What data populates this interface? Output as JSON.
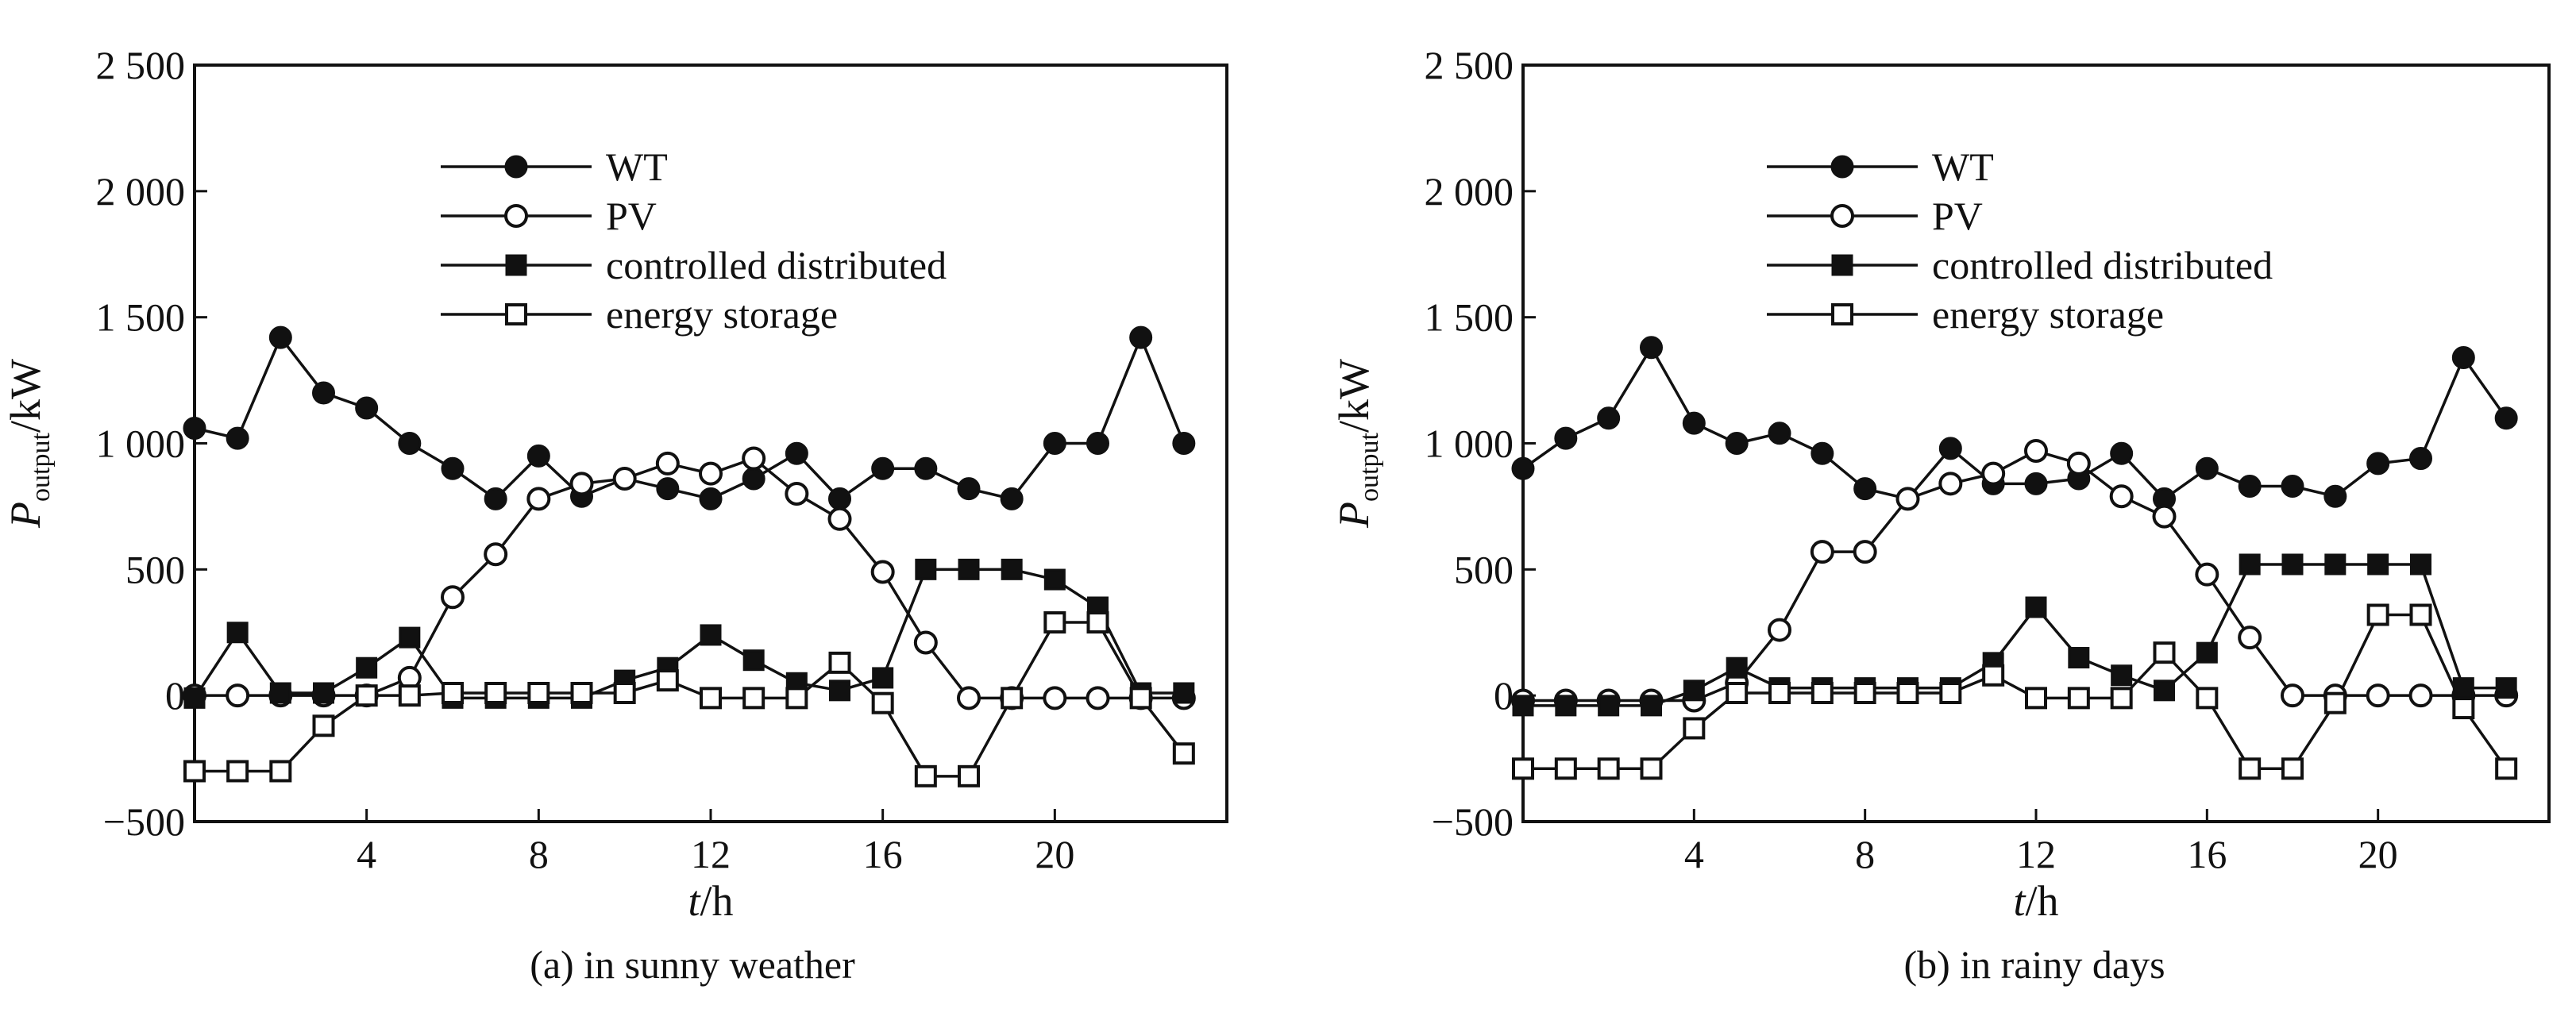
{
  "chart_data": [
    {
      "type": "line",
      "caption": "(a) in sunny weather",
      "xlabel": {
        "main": "t",
        "unit": "/h"
      },
      "ylabel": {
        "main": "P",
        "sub": "output",
        "unit": "/kW"
      },
      "xlim": [
        0,
        24
      ],
      "ylim": [
        -500,
        2500
      ],
      "xticks": [
        4,
        8,
        12,
        16,
        20
      ],
      "yticks": [
        -500,
        0,
        500,
        1000,
        1500,
        2000,
        2500
      ],
      "ytick_labels": [
        "−500",
        "0",
        "500",
        "1 000",
        "1 500",
        "2 000",
        "2 500"
      ],
      "legend_placement": "top-center",
      "x": [
        0,
        1,
        2,
        3,
        4,
        5,
        6,
        7,
        8,
        9,
        10,
        11,
        12,
        13,
        14,
        15,
        16,
        17,
        18,
        19,
        20,
        21,
        22,
        23
      ],
      "series": [
        {
          "name": "WT",
          "marker": "filled-circle",
          "values": [
            1060,
            1020,
            1420,
            1200,
            1140,
            1000,
            900,
            780,
            950,
            790,
            860,
            820,
            780,
            860,
            960,
            780,
            900,
            900,
            820,
            780,
            1000,
            1000,
            1420,
            1000
          ]
        },
        {
          "name": "PV",
          "marker": "open-circle",
          "values": [
            0,
            0,
            0,
            0,
            0,
            70,
            390,
            560,
            780,
            840,
            860,
            920,
            880,
            940,
            800,
            700,
            490,
            210,
            -10,
            -10,
            -10,
            -10,
            -10,
            -10
          ]
        },
        {
          "name": "controlled distributed",
          "marker": "filled-square",
          "values": [
            -10,
            250,
            10,
            10,
            110,
            230,
            -10,
            -10,
            -10,
            -10,
            60,
            110,
            240,
            140,
            50,
            20,
            70,
            500,
            500,
            500,
            460,
            350,
            10,
            10
          ]
        },
        {
          "name": "energy storage",
          "marker": "open-square",
          "values": [
            -300,
            -300,
            -300,
            -120,
            0,
            0,
            10,
            10,
            10,
            10,
            10,
            60,
            -10,
            -10,
            -10,
            130,
            -30,
            -320,
            -320,
            -10,
            290,
            290,
            -10,
            -230
          ]
        }
      ]
    },
    {
      "type": "line",
      "caption": "(b) in rainy days",
      "xlabel": {
        "main": "t",
        "unit": "/h"
      },
      "ylabel": {
        "main": "P",
        "sub": "output",
        "unit": "/kW"
      },
      "xlim": [
        0,
        24
      ],
      "ylim": [
        -500,
        2500
      ],
      "xticks": [
        4,
        8,
        12,
        16,
        20
      ],
      "yticks": [
        -500,
        0,
        500,
        1000,
        1500,
        2000,
        2500
      ],
      "ytick_labels": [
        "−500",
        "0",
        "500",
        "1 000",
        "1 500",
        "2 000",
        "2 500"
      ],
      "legend_placement": "top-center",
      "x": [
        0,
        1,
        2,
        3,
        4,
        5,
        6,
        7,
        8,
        9,
        10,
        11,
        12,
        13,
        14,
        15,
        16,
        17,
        18,
        19,
        20,
        21,
        22,
        23
      ],
      "series": [
        {
          "name": "WT",
          "marker": "filled-circle",
          "values": [
            900,
            1020,
            1100,
            1380,
            1080,
            1000,
            1040,
            960,
            820,
            780,
            980,
            840,
            840,
            860,
            960,
            780,
            900,
            830,
            830,
            790,
            920,
            940,
            1340,
            1100
          ]
        },
        {
          "name": "PV",
          "marker": "open-circle",
          "values": [
            -20,
            -20,
            -20,
            -20,
            -20,
            50,
            260,
            570,
            570,
            780,
            840,
            880,
            970,
            920,
            790,
            710,
            480,
            230,
            0,
            0,
            0,
            0,
            0,
            0
          ]
        },
        {
          "name": "controlled distributed",
          "marker": "filled-square",
          "values": [
            -40,
            -40,
            -40,
            -40,
            20,
            110,
            30,
            30,
            30,
            30,
            30,
            130,
            350,
            150,
            80,
            20,
            170,
            520,
            520,
            520,
            520,
            520,
            30,
            30
          ]
        },
        {
          "name": "energy storage",
          "marker": "open-square",
          "values": [
            -290,
            -290,
            -290,
            -290,
            -130,
            10,
            10,
            10,
            10,
            10,
            10,
            80,
            -10,
            -10,
            -10,
            170,
            -10,
            -290,
            -290,
            -30,
            320,
            320,
            -50,
            -290
          ]
        }
      ]
    }
  ]
}
